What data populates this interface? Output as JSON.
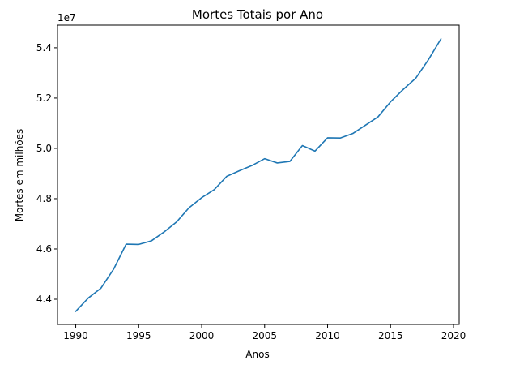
{
  "chart_data": {
    "type": "line",
    "title": "Mortes Totais por Ano",
    "xlabel": "Anos",
    "ylabel": "Mortes em milhões",
    "y_offset_label": "1e7",
    "xlim": [
      1988.55,
      2020.45
    ],
    "ylim": [
      4.3,
      5.49
    ],
    "x_ticks": [
      1990,
      1995,
      2000,
      2005,
      2010,
      2015,
      2020
    ],
    "x_tick_labels": [
      "1990",
      "1995",
      "2000",
      "2005",
      "2010",
      "2015",
      "2020"
    ],
    "y_ticks": [
      4.4,
      4.6,
      4.8,
      5.0,
      5.2,
      5.4
    ],
    "y_tick_labels": [
      "4.4",
      "4.6",
      "4.8",
      "5.0",
      "5.2",
      "5.4"
    ],
    "grid": false,
    "series": [
      {
        "color": "#1f77b4",
        "x": [
          1990,
          1991,
          1992,
          1993,
          1994,
          1995,
          1996,
          1997,
          1998,
          1999,
          2000,
          2001,
          2002,
          2003,
          2004,
          2005,
          2006,
          2007,
          2008,
          2009,
          2010,
          2011,
          2012,
          2013,
          2014,
          2015,
          2016,
          2017,
          2018,
          2019
        ],
        "y": [
          4.352,
          4.405,
          4.444,
          4.519,
          4.619,
          4.618,
          4.632,
          4.667,
          4.707,
          4.764,
          4.804,
          4.836,
          4.889,
          4.911,
          4.932,
          4.959,
          4.942,
          4.948,
          5.011,
          4.989,
          5.042,
          5.041,
          5.059,
          5.092,
          5.125,
          5.185,
          5.234,
          5.279,
          5.352,
          5.435
        ]
      }
    ]
  }
}
